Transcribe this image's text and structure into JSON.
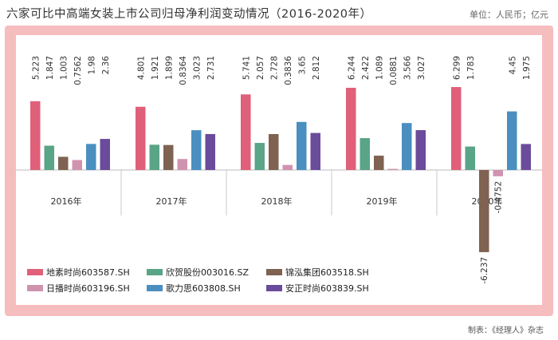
{
  "header": {
    "title": "六家可比中高端女装上市公司归母净利润变动情况（2016-2020年）",
    "unit": "单位：人民币；亿元"
  },
  "footer": {
    "source": "制表：《经理人》杂志"
  },
  "chart_data": {
    "type": "bar",
    "title": "六家可比中高端女装上市公司归母净利润变动情况（2016-2020年）",
    "ylabel": "单位：人民币；亿元",
    "categories": [
      "2016年",
      "2017年",
      "2018年",
      "2019年",
      "2020年"
    ],
    "series": [
      {
        "name": "地素时尚603587.SH",
        "color": "#e05f79",
        "values": [
          5.223,
          4.801,
          5.741,
          6.244,
          6.299
        ],
        "labels": [
          "5.223",
          "4.801",
          "5.741",
          "6.244",
          "6.299"
        ]
      },
      {
        "name": "欣贺股份003016.SZ",
        "color": "#5aa487",
        "values": [
          1.847,
          1.921,
          2.057,
          2.422,
          1.783
        ],
        "labels": [
          "1.847",
          "1.921",
          "2.057",
          "2.422",
          "1.783"
        ]
      },
      {
        "name": "锦泓集团603518.SH",
        "color": "#7f6252",
        "values": [
          1.003,
          1.899,
          2.728,
          1.089,
          -6.237
        ],
        "labels": [
          "1.003",
          "1.899",
          "2.728",
          "1.089",
          "-6.237"
        ]
      },
      {
        "name": "日播时尚603196.SH",
        "color": "#cf93b0",
        "values": [
          0.7562,
          0.8364,
          0.3836,
          0.0881,
          -0.4752
        ],
        "labels": [
          "0.7562",
          "0.8364",
          "0.3836",
          "0.0881",
          "-0.4752"
        ]
      },
      {
        "name": "歌力思603808.SH",
        "color": "#4a8fc0",
        "values": [
          1.98,
          3.023,
          3.65,
          3.566,
          4.45
        ],
        "labels": [
          "1.98",
          "3.023",
          "3.65",
          "3.566",
          "4.45"
        ]
      },
      {
        "name": "安正时尚603839.SH",
        "color": "#6b4b9b",
        "values": [
          2.36,
          2.731,
          2.812,
          3.027,
          1.975
        ],
        "labels": [
          "2.36",
          "2.731",
          "2.812",
          "3.027",
          "1.975"
        ]
      }
    ],
    "ylim": [
      -6.5,
      7.0
    ],
    "grid": false,
    "legend": "bottom-left"
  }
}
